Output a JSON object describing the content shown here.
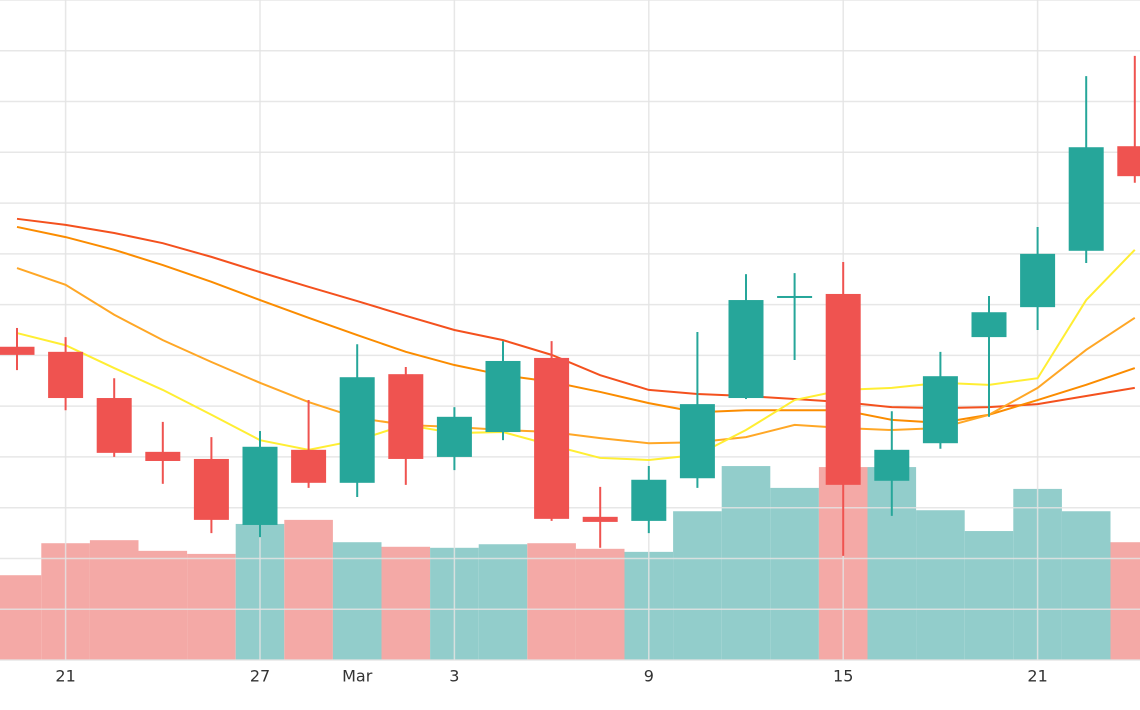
{
  "chart_data": {
    "type": "candlestick",
    "categories": [
      null,
      "21",
      null,
      null,
      null,
      "27",
      null,
      "Mar",
      null,
      "3",
      null,
      null,
      null,
      "9",
      null,
      null,
      null,
      "15",
      null,
      null,
      null,
      "21",
      null,
      null
    ],
    "open": [
      61.7,
      60.7,
      51.6,
      41.0,
      39.6,
      26.6,
      41.4,
      34.9,
      56.3,
      40.0,
      44.9,
      59.5,
      28.2,
      27.4,
      35.8,
      51.6,
      71.5,
      72.1,
      35.3,
      42.7,
      63.6,
      69.5,
      80.6,
      101.2
    ],
    "high": [
      65.4,
      63.6,
      55.5,
      46.9,
      43.9,
      45.1,
      51.2,
      62.2,
      57.7,
      49.8,
      62.8,
      62.8,
      34.1,
      38.2,
      64.6,
      76.0,
      76.2,
      78.4,
      49.0,
      60.7,
      71.7,
      85.3,
      115.0,
      119.0
    ],
    "low": [
      57.1,
      49.2,
      40.0,
      34.7,
      25.0,
      24.2,
      33.9,
      32.1,
      34.5,
      37.4,
      43.3,
      27.4,
      22.1,
      25.0,
      33.9,
      51.4,
      59.1,
      20.5,
      28.4,
      41.6,
      47.9,
      65.0,
      78.2,
      94.0
    ],
    "close": [
      60.1,
      51.6,
      40.8,
      39.2,
      27.6,
      42.0,
      34.9,
      55.7,
      39.6,
      47.9,
      58.9,
      27.8,
      27.2,
      35.5,
      50.4,
      70.9,
      71.7,
      34.5,
      41.4,
      55.9,
      68.5,
      80.0,
      101.0,
      95.3
    ],
    "volume": [
      16.7,
      23.0,
      23.6,
      21.5,
      20.9,
      26.8,
      27.6,
      23.2,
      22.3,
      22.1,
      22.8,
      23.0,
      21.9,
      21.3,
      29.3,
      38.2,
      33.9,
      38.0,
      38.0,
      29.5,
      25.4,
      33.7,
      29.3,
      23.2
    ],
    "up_color": "#26a69a",
    "down_color": "#ef5350",
    "volume_up_color": "#92cdcb",
    "volume_down_color": "#f4a9a6",
    "moving_averages": [
      {
        "color": "#f4511e",
        "values": [
          86.9,
          85.7,
          84.1,
          82.1,
          79.4,
          76.4,
          73.5,
          70.7,
          67.8,
          65.0,
          63.0,
          60.1,
          56.1,
          53.2,
          52.4,
          52.0,
          51.4,
          50.8,
          49.8,
          49.6,
          49.8,
          50.4,
          52.0,
          53.6
        ]
      },
      {
        "color": "#fb8c00",
        "values": [
          85.3,
          83.3,
          80.8,
          77.8,
          74.5,
          70.9,
          67.4,
          64.0,
          60.7,
          58.1,
          56.1,
          54.8,
          52.8,
          50.6,
          48.8,
          49.2,
          49.2,
          49.2,
          47.3,
          46.7,
          48.3,
          51.2,
          54.2,
          57.5
        ]
      },
      {
        "color": "#ffa726",
        "values": [
          77.2,
          73.9,
          68.0,
          63.0,
          58.7,
          54.6,
          50.8,
          47.7,
          46.3,
          45.9,
          45.3,
          44.9,
          43.7,
          42.7,
          42.9,
          43.9,
          46.3,
          45.7,
          45.3,
          45.7,
          48.3,
          53.6,
          61.1,
          67.4
        ]
      },
      {
        "color": "#ffee33",
        "values": [
          64.4,
          62.0,
          57.5,
          53.2,
          48.3,
          43.3,
          41.4,
          43.3,
          46.3,
          44.7,
          44.9,
          42.3,
          39.8,
          39.4,
          40.4,
          45.3,
          51.2,
          53.2,
          53.6,
          54.6,
          54.2,
          55.5,
          70.9,
          80.8
        ]
      }
    ],
    "ylim": [
      0,
      130
    ],
    "yticks": [
      0,
      10,
      20,
      30,
      40,
      50,
      60,
      70,
      80,
      90,
      100,
      110,
      120,
      130
    ],
    "y2lim": [
      0,
      130
    ],
    "grid": true
  }
}
